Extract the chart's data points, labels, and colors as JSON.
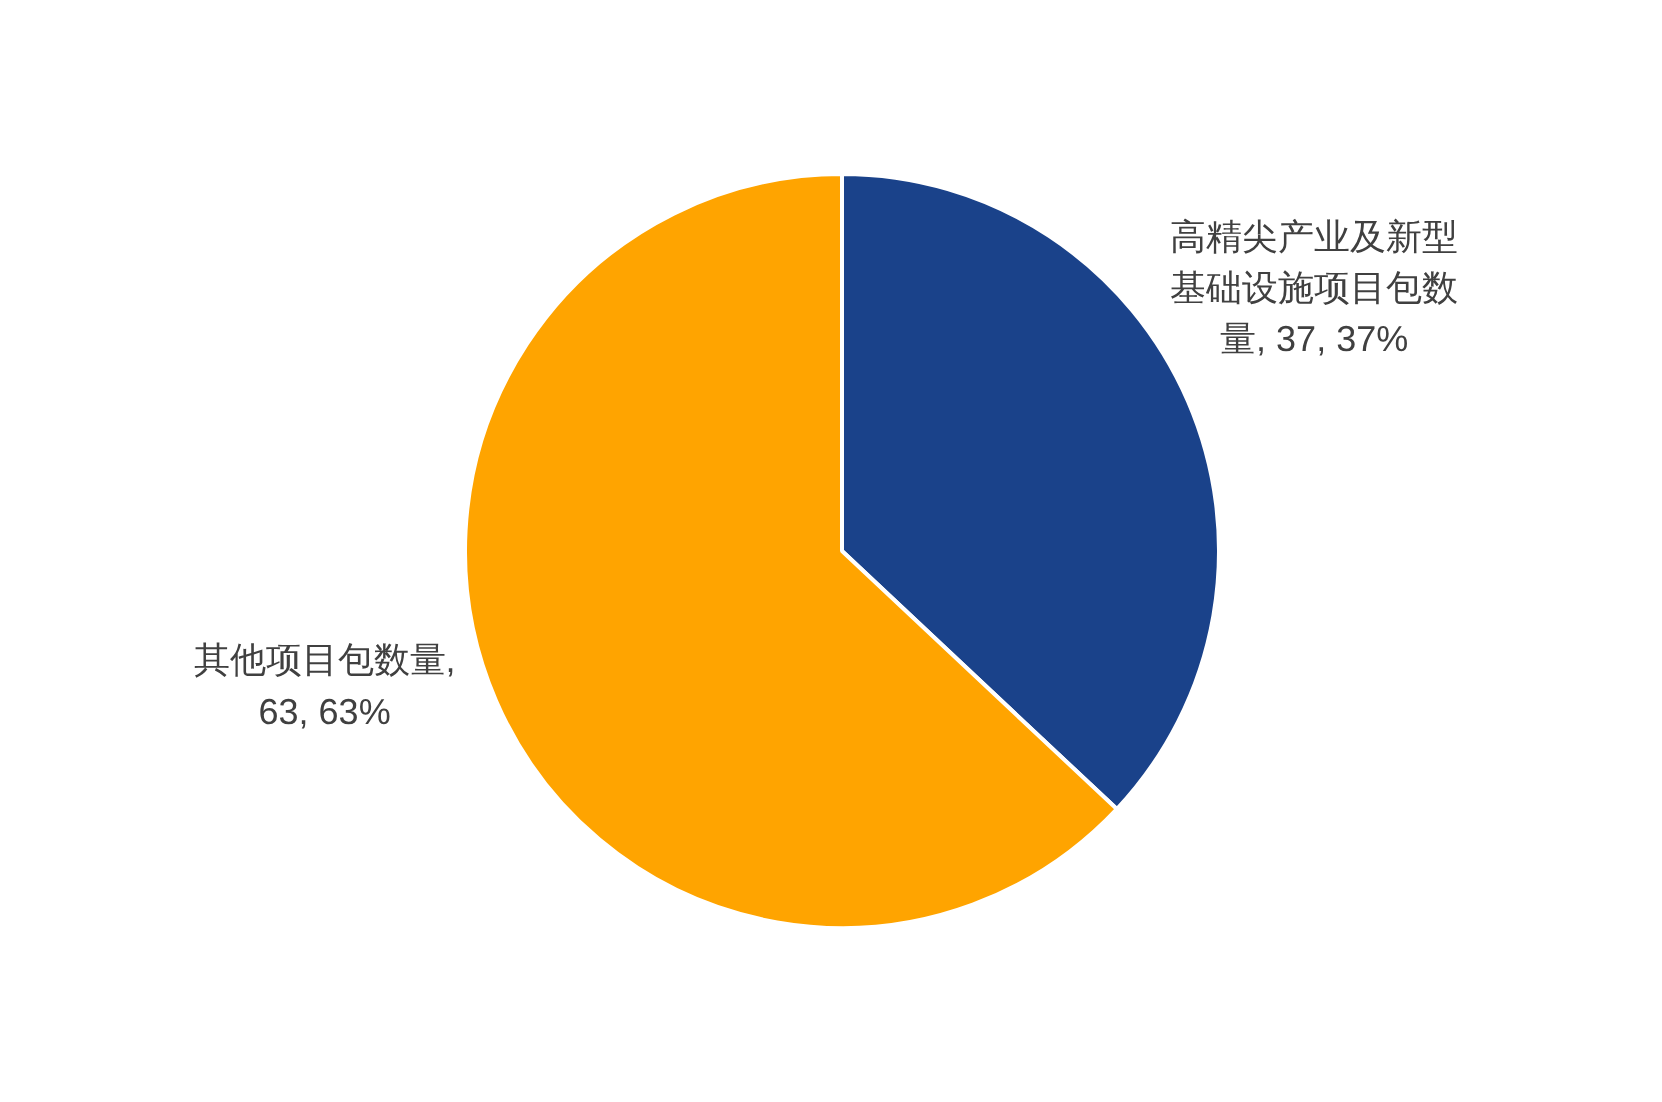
{
  "chart_data": {
    "type": "pie",
    "categories": [
      "高精尖产业及新型基础设施项目包数量",
      "其他项目包数量"
    ],
    "values": [
      37,
      63
    ],
    "colors": [
      "#1a428a",
      "#ffa400"
    ],
    "value_labels": [
      ", 37, 37%",
      ", 63, 63%"
    ]
  }
}
